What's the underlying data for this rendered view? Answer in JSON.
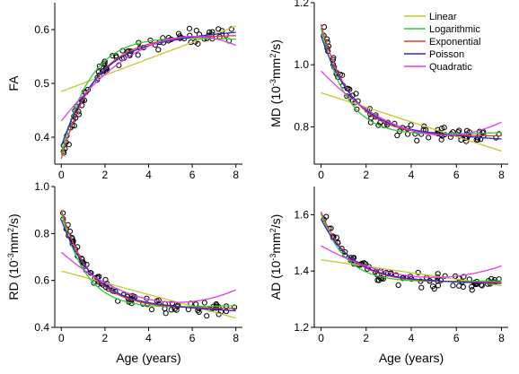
{
  "legend": [
    {
      "name": "Linear",
      "color": "#c8c82a"
    },
    {
      "name": "Logarithmic",
      "color": "#33cc33"
    },
    {
      "name": "Exponential",
      "color": "#e03a3a"
    },
    {
      "name": "Poisson",
      "color": "#2b2bd0"
    },
    {
      "name": "Quadratic",
      "color": "#e23be8"
    }
  ],
  "chart_data": [
    {
      "type": "scatter",
      "panel": "FA",
      "ylabel_main": "FA",
      "ylabel_unit": "",
      "xlabel": "",
      "xlim": [
        -0.3,
        8.3
      ],
      "ylim": [
        0.35,
        0.65
      ],
      "xticks": [
        "0",
        "2",
        "4",
        "6",
        "8"
      ],
      "yticks": [
        0.4,
        0.5,
        0.6
      ],
      "ytick_labels": [
        "0.4",
        "0.5",
        "0.6"
      ],
      "fit": {
        "start": 0.36,
        "plateau": 0.59,
        "rate": 0.65,
        "lin_a": 0.485,
        "lin_b": 0.0152,
        "quad": [
          0.43,
          0.052,
          -0.0043
        ]
      }
    },
    {
      "type": "scatter",
      "panel": "MD",
      "ylabel_main": "MD (10",
      "ylabel_sup": "-3",
      "ylabel_unit": "mm",
      "ylabel_sup2": "2",
      "ylabel_tail": "/s)",
      "xlabel": "",
      "xlim": [
        -0.3,
        8.3
      ],
      "ylim": [
        0.68,
        1.2
      ],
      "xticks": [
        "0",
        "2",
        "4",
        "6",
        "8"
      ],
      "yticks": [
        0.8,
        1.0,
        1.2
      ],
      "ytick_labels": [
        "0.8",
        "1.0",
        "1.2"
      ],
      "fit": {
        "start": 1.13,
        "plateau": 0.77,
        "rate": 0.75,
        "lin_a": 0.91,
        "lin_b": -0.0235,
        "quad": [
          0.98,
          -0.075,
          0.0068
        ]
      }
    },
    {
      "type": "scatter",
      "panel": "RD",
      "ylabel_main": "RD (10",
      "ylabel_sup": "-3",
      "ylabel_unit": "mm",
      "ylabel_sup2": "2",
      "ylabel_tail": "/s)",
      "xlabel": "Age (years)",
      "xlim": [
        -0.3,
        8.3
      ],
      "ylim": [
        0.4,
        1.0
      ],
      "xticks": [
        "0",
        "2",
        "4",
        "6",
        "8"
      ],
      "yticks": [
        0.4,
        0.6,
        0.8,
        1.0
      ],
      "ytick_labels": [
        "0.4",
        "0.6",
        "0.8",
        "1.0"
      ],
      "fit": {
        "start": 0.9,
        "plateau": 0.48,
        "rate": 0.75,
        "lin_a": 0.64,
        "lin_b": -0.025,
        "quad": [
          0.72,
          -0.08,
          0.0075
        ]
      }
    },
    {
      "type": "scatter",
      "panel": "AD",
      "ylabel_main": "AD (10",
      "ylabel_sup": "-3",
      "ylabel_unit": "mm",
      "ylabel_sup2": "2",
      "ylabel_tail": "/s)",
      "xlabel": "Age (years)",
      "xlim": [
        -0.3,
        8.3
      ],
      "ylim": [
        1.2,
        1.7
      ],
      "xticks": [
        "0",
        "2",
        "4",
        "6",
        "8"
      ],
      "yticks": [
        1.2,
        1.4,
        1.6
      ],
      "ytick_labels": [
        "1.2",
        "1.4",
        "1.6"
      ],
      "fit": {
        "start": 1.61,
        "plateau": 1.36,
        "rate": 0.8,
        "lin_a": 1.44,
        "lin_b": -0.0115,
        "quad": [
          1.49,
          -0.045,
          0.0045
        ]
      }
    }
  ]
}
